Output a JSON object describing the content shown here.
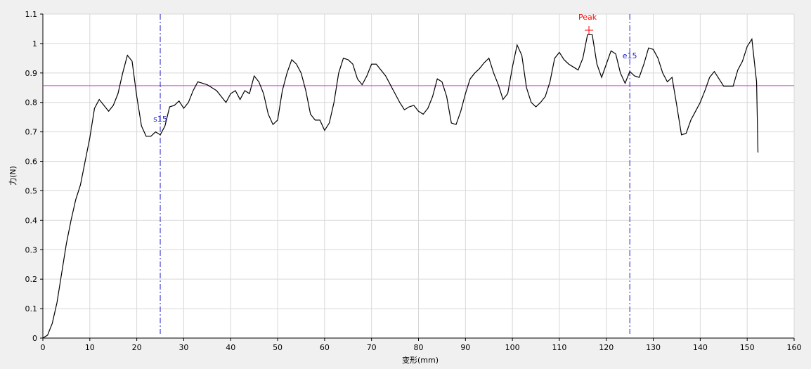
{
  "chart_data": {
    "type": "line",
    "xlabel": "变形(mm)",
    "ylabel": "力(N)",
    "xlim": [
      0,
      160
    ],
    "ylim": [
      0,
      1.1
    ],
    "xticks": [
      0,
      10,
      20,
      30,
      40,
      50,
      60,
      70,
      80,
      90,
      100,
      110,
      120,
      130,
      140,
      150,
      160
    ],
    "yticks": [
      0,
      0.1,
      0.2,
      0.3,
      0.4,
      0.5,
      0.6,
      0.7,
      0.8,
      0.9,
      1,
      1.1
    ],
    "grid": true,
    "x": [
      0,
      1,
      2,
      3,
      4,
      5,
      6,
      7,
      8,
      9,
      10,
      11,
      12,
      13,
      14,
      15,
      16,
      17,
      18,
      19,
      20,
      21,
      22,
      23,
      24,
      25,
      26,
      27,
      28,
      29,
      30,
      31,
      32,
      33,
      34,
      35,
      36,
      37,
      38,
      39,
      40,
      41,
      42,
      43,
      44,
      45,
      46,
      47,
      48,
      49,
      50,
      51,
      52,
      53,
      54,
      55,
      56,
      57,
      58,
      59,
      60,
      61,
      62,
      63,
      64,
      65,
      66,
      67,
      68,
      69,
      70,
      71,
      72,
      73,
      74,
      75,
      76,
      77,
      78,
      79,
      80,
      81,
      82,
      83,
      84,
      85,
      86,
      87,
      88,
      89,
      90,
      91,
      92,
      93,
      94,
      95,
      96,
      97,
      98,
      99,
      100,
      101,
      102,
      103,
      104,
      105,
      106,
      107,
      108,
      109,
      110,
      111,
      112,
      113,
      114,
      115,
      116,
      117,
      118,
      119,
      120,
      121,
      122,
      123,
      124,
      125,
      126,
      127,
      128,
      129,
      130,
      131,
      132,
      133,
      134,
      135,
      136,
      137,
      138,
      139,
      140,
      141,
      142,
      143,
      144,
      145,
      146,
      147,
      148,
      149,
      150,
      151,
      152,
      152.3
    ],
    "series": [
      {
        "color": "#000000",
        "values": [
          0,
          0.01,
          0.05,
          0.12,
          0.22,
          0.32,
          0.4,
          0.47,
          0.52,
          0.6,
          0.68,
          0.78,
          0.81,
          0.79,
          0.77,
          0.79,
          0.83,
          0.9,
          0.96,
          0.94,
          0.82,
          0.72,
          0.685,
          0.685,
          0.7,
          0.69,
          0.72,
          0.785,
          0.79,
          0.805,
          0.78,
          0.8,
          0.84,
          0.87,
          0.865,
          0.86,
          0.85,
          0.84,
          0.82,
          0.8,
          0.83,
          0.84,
          0.81,
          0.84,
          0.83,
          0.89,
          0.87,
          0.83,
          0.76,
          0.725,
          0.74,
          0.84,
          0.9,
          0.945,
          0.93,
          0.9,
          0.84,
          0.76,
          0.74,
          0.74,
          0.705,
          0.73,
          0.8,
          0.9,
          0.95,
          0.945,
          0.93,
          0.88,
          0.86,
          0.89,
          0.93,
          0.93,
          0.91,
          0.89,
          0.86,
          0.83,
          0.8,
          0.775,
          0.785,
          0.79,
          0.77,
          0.76,
          0.78,
          0.82,
          0.88,
          0.87,
          0.82,
          0.73,
          0.725,
          0.77,
          0.83,
          0.88,
          0.9,
          0.915,
          0.935,
          0.95,
          0.9,
          0.86,
          0.81,
          0.83,
          0.92,
          0.995,
          0.96,
          0.85,
          0.8,
          0.785,
          0.8,
          0.82,
          0.87,
          0.95,
          0.97,
          0.945,
          0.93,
          0.92,
          0.91,
          0.95,
          1.03,
          1.03,
          0.93,
          0.885,
          0.93,
          0.975,
          0.965,
          0.9,
          0.865,
          0.905,
          0.89,
          0.885,
          0.93,
          0.985,
          0.98,
          0.95,
          0.9,
          0.87,
          0.885,
          0.79,
          0.69,
          0.695,
          0.74,
          0.77,
          0.8,
          0.84,
          0.885,
          0.905,
          0.88,
          0.855,
          0.855,
          0.855,
          0.91,
          0.94,
          0.99,
          1.015,
          0.87,
          0.63
        ]
      }
    ],
    "hline": {
      "value": 0.857,
      "color": "#cc44cc"
    },
    "vlines": [
      {
        "x": 25,
        "label": "s15",
        "color": "#2222cc"
      },
      {
        "x": 125,
        "label": "e15",
        "color": "#2222cc"
      }
    ],
    "peak": {
      "x": 116.3,
      "y": 1.045,
      "label": "Peak",
      "color": "#ff0000"
    }
  }
}
